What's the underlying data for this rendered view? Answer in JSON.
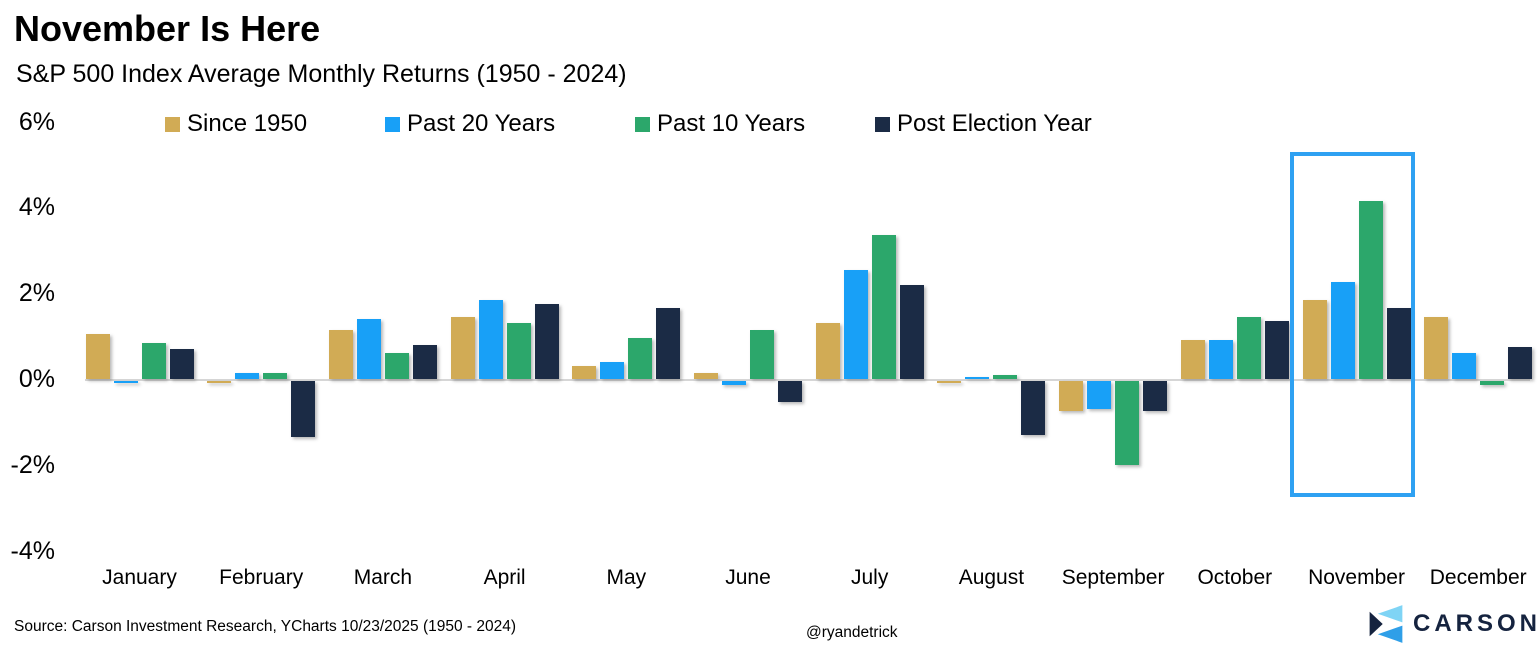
{
  "header": {
    "title": "November Is Here",
    "subtitle": "S&P 500 Index Average Monthly Returns (1950 - 2024)"
  },
  "chart_data": {
    "type": "bar",
    "title": "November Is Here",
    "subtitle": "S&P 500 Index Average Monthly Returns (1950 - 2024)",
    "unit": "%",
    "categories": [
      "January",
      "February",
      "March",
      "April",
      "May",
      "June",
      "July",
      "August",
      "September",
      "October",
      "November",
      "December"
    ],
    "series": [
      {
        "name": "Since 1950",
        "color": "#d1ab55",
        "values": [
          1.05,
          -0.03,
          1.15,
          1.45,
          0.3,
          0.15,
          1.3,
          -0.02,
          -0.7,
          0.9,
          1.85,
          1.45
        ]
      },
      {
        "name": "Past 20 Years",
        "color": "#18a0f7",
        "values": [
          -0.05,
          0.15,
          1.4,
          1.85,
          0.4,
          -0.1,
          2.55,
          0.02,
          -0.65,
          0.9,
          2.25,
          0.6
        ]
      },
      {
        "name": "Past 10 Years",
        "color": "#2ca76b",
        "values": [
          0.85,
          0.15,
          0.6,
          1.3,
          0.95,
          1.15,
          3.35,
          0.1,
          -1.95,
          1.45,
          4.15,
          -0.1
        ]
      },
      {
        "name": "Post Election Year",
        "color": "#1b2b45",
        "values": [
          0.7,
          -1.3,
          0.8,
          1.75,
          1.65,
          -0.5,
          2.2,
          -1.25,
          -0.7,
          1.35,
          1.65,
          0.75
        ]
      }
    ],
    "yticks": {
      "labels": [
        "6%",
        "4%",
        "2%",
        "0%",
        "-2%",
        "-4%"
      ],
      "values": [
        6,
        4,
        2,
        0,
        -2,
        -4
      ]
    },
    "ylim": [
      -4.5,
      6.2
    ],
    "grid": "zero-line-only",
    "legend_position": "top",
    "highlight": {
      "month": "November",
      "color": "#2ea1f2"
    }
  },
  "footer": {
    "source": "Source: Carson Investment Research, YCharts 10/23/2025 (1950 - 2024)",
    "attribution": "@ryandetrick",
    "brand": "CARSON"
  },
  "colors": {
    "since_1950": "#d1ab55",
    "past_20_years": "#18a0f7",
    "past_10_years": "#2ca76b",
    "post_election_year": "#1b2b45",
    "highlight_border": "#2ea1f2",
    "zero_line": "#d6d6d6",
    "brand_navy": "#15233f",
    "brand_light_blue": "#7fd4f5",
    "brand_blue": "#2f9fe8"
  }
}
